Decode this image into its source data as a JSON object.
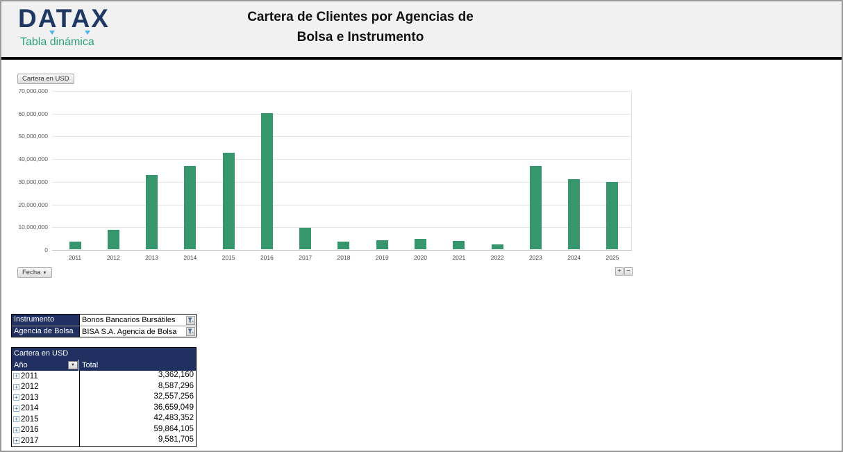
{
  "header": {
    "logo_text": "DATAX",
    "logo_subtitle": "Tabla dinámica",
    "title_line1": "Cartera de Clientes por Agencias de",
    "title_line2": "Bolsa e Instrumento"
  },
  "chart": {
    "value_field_button": "Cartera en USD",
    "axis_field_button": "Fecha",
    "zoom_in_label": "+",
    "zoom_out_label": "−"
  },
  "chart_data": {
    "type": "bar",
    "title": "Cartera en USD",
    "xlabel": "Fecha",
    "ylabel": "",
    "categories": [
      "2011",
      "2012",
      "2013",
      "2014",
      "2015",
      "2016",
      "2017",
      "2018",
      "2019",
      "2020",
      "2021",
      "2022",
      "2023",
      "2024",
      "2025"
    ],
    "values": [
      3362160,
      8587296,
      32557256,
      36659049,
      42483352,
      59864105,
      9581705,
      3400000,
      4100000,
      4500000,
      3700000,
      2200000,
      36700000,
      31000000,
      29800000
    ],
    "ylim": [
      0,
      70000000
    ],
    "ytick_step": 10000000,
    "ytick_labels": [
      "70,000,000",
      "60,000,000",
      "50,000,000",
      "40,000,000",
      "30,000,000",
      "20,000,000",
      "10,000,000",
      "0"
    ],
    "bar_color": "#35976B",
    "grid": true,
    "legend_position": "none"
  },
  "filters": {
    "rows": [
      {
        "label": "Instrumento",
        "value": "Bonos Bancarios Bursátiles"
      },
      {
        "label": "Agencia de Bolsa",
        "value": "BISA S.A. Agencia de Bolsa"
      }
    ]
  },
  "pivot": {
    "title": "Cartera en USD",
    "row_field": "Año",
    "total_header": "Total",
    "rows": [
      {
        "year": "2011",
        "total": "3,362,160"
      },
      {
        "year": "2012",
        "total": "8,587,296"
      },
      {
        "year": "2013",
        "total": "32,557,256"
      },
      {
        "year": "2014",
        "total": "36,659,049"
      },
      {
        "year": "2015",
        "total": "42,483,352"
      },
      {
        "year": "2016",
        "total": "59,864,105"
      },
      {
        "year": "2017",
        "total": "9,581,705"
      }
    ]
  }
}
